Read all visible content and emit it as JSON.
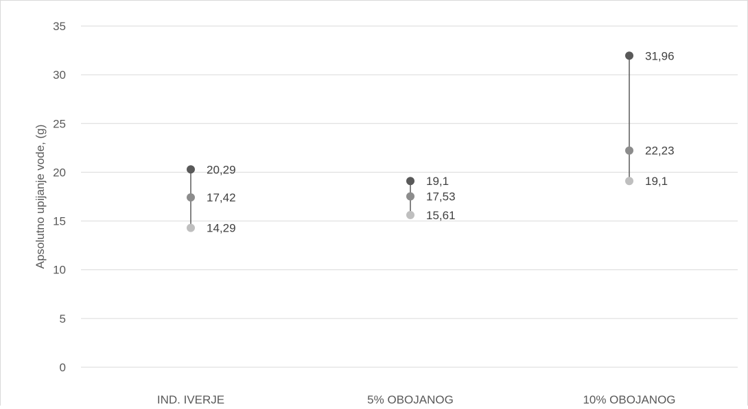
{
  "chart_data": {
    "type": "scatter",
    "title": "",
    "xlabel": "",
    "ylabel": "Apsolutno upijanje vode, (g)",
    "ylim": [
      0,
      35
    ],
    "yticks": [
      0,
      5,
      10,
      15,
      20,
      25,
      30,
      35
    ],
    "grid": true,
    "legend": "none",
    "categories": [
      "IND. IVERJE",
      "5% OBOJANOG",
      "10% OBOJANOG"
    ],
    "series": [
      {
        "values": [
          20.29,
          19.1,
          31.96
        ],
        "labels": [
          "20,29",
          "19,1",
          "31,96"
        ],
        "color": "#595959"
      },
      {
        "values": [
          17.42,
          17.53,
          22.23
        ],
        "labels": [
          "17,42",
          "17,53",
          "22,23"
        ],
        "color": "#8c8c8c"
      },
      {
        "values": [
          14.29,
          15.61,
          19.1
        ],
        "labels": [
          "14,29",
          "15,61",
          "19,1"
        ],
        "color": "#bfbfbf"
      }
    ],
    "range_line_color": "#595959"
  }
}
